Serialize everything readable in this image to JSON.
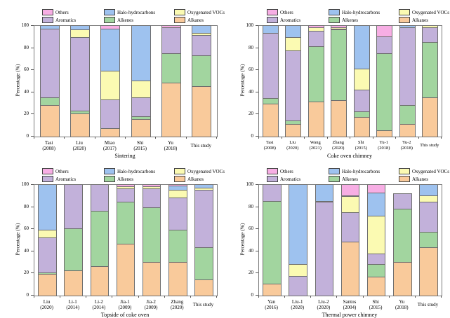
{
  "figure": {
    "background": "#ffffff",
    "ylabel": "Percentage (%)"
  },
  "legend": {
    "position": "top",
    "items": [
      {
        "label": "Others",
        "color": "#F7AEE4"
      },
      {
        "label": "Halo-hydrocarbons",
        "color": "#9EC2EF"
      },
      {
        "label": "Oxygenated VOCs",
        "color": "#FBFAB2"
      },
      {
        "label": "Aromatics",
        "color": "#C2B1DA"
      },
      {
        "label": "Alkenes",
        "color": "#A2D59F"
      },
      {
        "label": "Alkanes",
        "color": "#F9CA9B"
      }
    ]
  },
  "chart_data": [
    {
      "type": "bar",
      "stacked": true,
      "xlabel": "Sintering",
      "ylabel": "Percentage (%)",
      "ylim": [
        0,
        100
      ],
      "yticks": [
        0,
        20,
        40,
        60,
        80,
        100
      ],
      "grid": false,
      "categories": [
        {
          "name": "Tasi",
          "year": "(2008)"
        },
        {
          "name": "Liu",
          "year": "(2020)"
        },
        {
          "name": "Miao",
          "year": "(2017)"
        },
        {
          "name": "Shi",
          "year": "(2015)"
        },
        {
          "name": "Yu",
          "year": "(2018)"
        },
        {
          "name": "This study",
          "year": ""
        }
      ],
      "series": [
        {
          "name": "Alkanes",
          "values": [
            28,
            20,
            7,
            15,
            48,
            45
          ]
        },
        {
          "name": "Alkenes",
          "values": [
            7,
            3,
            0,
            3,
            27,
            28
          ]
        },
        {
          "name": "Aromatics",
          "values": [
            62,
            66,
            26,
            17,
            23,
            18
          ]
        },
        {
          "name": "Oxygenated VOCs",
          "values": [
            0,
            7,
            26,
            15,
            0,
            2
          ]
        },
        {
          "name": "Halo-hydrocarbons",
          "values": [
            3,
            4,
            38,
            50,
            0,
            7
          ]
        },
        {
          "name": "Others",
          "values": [
            0,
            0,
            3,
            0,
            2,
            0
          ]
        }
      ]
    },
    {
      "type": "bar",
      "stacked": true,
      "xlabel": "Coke oven chimney",
      "ylabel": "Percentage (%)",
      "ylim": [
        0,
        100
      ],
      "yticks": [
        0,
        20,
        40,
        60,
        80,
        100
      ],
      "grid": false,
      "categories": [
        {
          "name": "Tasi",
          "year": "(2008)"
        },
        {
          "name": "Liu",
          "year": "(2020)"
        },
        {
          "name": "Wang",
          "year": "(2021)"
        },
        {
          "name": "Zhang",
          "year": "(2020)"
        },
        {
          "name": "Shi",
          "year": "(2015)"
        },
        {
          "name": "Yu-1",
          "year": "(2018)"
        },
        {
          "name": "Yu-2",
          "year": "(2018)"
        },
        {
          "name": "This study",
          "year": ""
        }
      ],
      "series": [
        {
          "name": "Alkanes",
          "values": [
            29,
            11,
            31,
            32,
            17,
            5,
            11,
            35
          ]
        },
        {
          "name": "Alkenes",
          "values": [
            5,
            3,
            50,
            64,
            5,
            70,
            17,
            50
          ]
        },
        {
          "name": "Aromatics",
          "values": [
            59,
            63,
            14,
            1,
            20,
            15,
            70,
            13
          ]
        },
        {
          "name": "Oxygenated VOCs",
          "values": [
            0,
            12,
            3,
            1,
            19,
            0,
            0,
            2
          ]
        },
        {
          "name": "Halo-hydrocarbons",
          "values": [
            7,
            11,
            0,
            0,
            39,
            0,
            2,
            0
          ]
        },
        {
          "name": "Others",
          "values": [
            0,
            0,
            2,
            2,
            0,
            10,
            0,
            0
          ]
        }
      ]
    },
    {
      "type": "bar",
      "stacked": true,
      "xlabel": "Topside of coke oven",
      "ylabel": "Percentage (%)",
      "ylim": [
        0,
        100
      ],
      "yticks": [
        0,
        20,
        40,
        60,
        80,
        100
      ],
      "grid": false,
      "categories": [
        {
          "name": "Liu",
          "year": "(2020)"
        },
        {
          "name": "Li-1",
          "year": "(2014)"
        },
        {
          "name": "Li-2",
          "year": "(2014)"
        },
        {
          "name": "Jia-1",
          "year": "(2009)"
        },
        {
          "name": "Jia-2",
          "year": "(2009)"
        },
        {
          "name": "Zhang",
          "year": "(2020)"
        },
        {
          "name": "This study",
          "year": ""
        }
      ],
      "series": [
        {
          "name": "Alkanes",
          "values": [
            19,
            22,
            26,
            46,
            30,
            30,
            14
          ]
        },
        {
          "name": "Alkenes",
          "values": [
            1,
            38,
            50,
            38,
            49,
            29,
            29
          ]
        },
        {
          "name": "Aromatics",
          "values": [
            32,
            40,
            24,
            12,
            17,
            29,
            52
          ]
        },
        {
          "name": "Oxygenated VOCs",
          "values": [
            7,
            0,
            0,
            2,
            2,
            7,
            2
          ]
        },
        {
          "name": "Halo-hydrocarbons",
          "values": [
            41,
            0,
            0,
            0,
            0,
            4,
            3
          ]
        },
        {
          "name": "Others",
          "values": [
            0,
            0,
            0,
            2,
            2,
            1,
            0
          ]
        }
      ]
    },
    {
      "type": "bar",
      "stacked": true,
      "xlabel": "Thermal power chimney",
      "ylabel": "Percentage (%)",
      "ylim": [
        0,
        100
      ],
      "yticks": [
        0,
        20,
        40,
        60,
        80,
        100
      ],
      "grid": false,
      "categories": [
        {
          "name": "Yan",
          "year": "(2016)"
        },
        {
          "name": "Liu-1",
          "year": "(2020)"
        },
        {
          "name": "Liu-2",
          "year": "(2020)"
        },
        {
          "name": "Santos",
          "year": "(2004)"
        },
        {
          "name": "Shi",
          "year": "(2015)"
        },
        {
          "name": "Yu",
          "year": "(2018)"
        },
        {
          "name": "This study",
          "year": ""
        }
      ],
      "series": [
        {
          "name": "Alkanes",
          "values": [
            10,
            0,
            0,
            48,
            18,
            30,
            43
          ]
        },
        {
          "name": "Alkenes",
          "values": [
            75,
            0,
            0,
            0,
            12,
            48,
            14
          ]
        },
        {
          "name": "Aromatics",
          "values": [
            15,
            17,
            84,
            27,
            10,
            14,
            27
          ]
        },
        {
          "name": "Oxygenated VOCs",
          "values": [
            0,
            11,
            1,
            14,
            37,
            0,
            6
          ]
        },
        {
          "name": "Halo-hydrocarbons",
          "values": [
            0,
            72,
            15,
            1,
            23,
            0,
            10
          ]
        },
        {
          "name": "Others",
          "values": [
            0,
            0,
            0,
            10,
            8,
            0,
            0
          ]
        }
      ]
    }
  ]
}
